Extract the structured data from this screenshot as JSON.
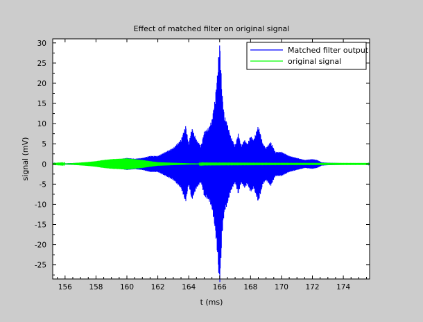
{
  "window": {
    "background": "#cccccc"
  },
  "chart_data": {
    "type": "line",
    "title": "Effect of matched filter on original signal",
    "xlabel": "t (ms)",
    "ylabel": "signal (mV)",
    "xlim": [
      155.2,
      175.7
    ],
    "ylim": [
      -28.5,
      31
    ],
    "xticks": [
      156,
      158,
      160,
      162,
      164,
      166,
      168,
      170,
      172,
      174
    ],
    "xtick_labels": [
      "156",
      "158",
      "160",
      "162",
      "164",
      "166",
      "168",
      "170",
      "172",
      "174"
    ],
    "yticks": [
      30,
      25,
      20,
      15,
      10,
      5,
      0,
      -5,
      -10,
      -15,
      -20,
      -25
    ],
    "ytick_labels": [
      "30",
      "25",
      "20",
      "15",
      "10",
      "5",
      "0",
      "-5",
      "-10",
      "-15",
      "-20",
      "-25"
    ],
    "grid": false,
    "legend_position": "top-right",
    "series": [
      {
        "name": "Matched filter output",
        "color": "#0000ff",
        "envelope": {
          "t": [
            155.2,
            156,
            157,
            158,
            159,
            159.5,
            160,
            160.5,
            161,
            161.5,
            162,
            162.5,
            163,
            163.5,
            163.8,
            164,
            164.2,
            164.5,
            164.8,
            165,
            165.3,
            165.5,
            165.7,
            165.85,
            165.95,
            166,
            166.05,
            166.15,
            166.3,
            166.5,
            166.7,
            167,
            167.2,
            167.4,
            167.6,
            167.8,
            168,
            168.2,
            168.5,
            168.8,
            169,
            169.3,
            169.6,
            170,
            170.5,
            171,
            171.5,
            172,
            172.3,
            172.6,
            173,
            174,
            175.7
          ],
          "amplitude": [
            0.1,
            0.15,
            0.3,
            0.6,
            0.8,
            1.2,
            1.5,
            1.3,
            1.5,
            2.0,
            2.0,
            3.0,
            4.0,
            6.0,
            9.5,
            5.0,
            9.0,
            6.0,
            4.5,
            8.0,
            9.0,
            11.0,
            16.0,
            22.0,
            28.0,
            30.0,
            27.0,
            18.0,
            12.0,
            10.0,
            7.0,
            4.5,
            7.5,
            4.5,
            6.0,
            5.0,
            7.0,
            6.0,
            9.5,
            5.0,
            4.0,
            5.5,
            3.0,
            3.0,
            2.0,
            1.5,
            1.0,
            1.2,
            1.0,
            0.4,
            0.3,
            0.2,
            0.1
          ]
        }
      },
      {
        "name": "original signal",
        "color": "#00ff00",
        "envelope": {
          "t": [
            155.2,
            156,
            156.5,
            157,
            157.5,
            158,
            158.5,
            159,
            159.5,
            160,
            160.5,
            161,
            161.5,
            162,
            163,
            164,
            165,
            170,
            175.7
          ],
          "amplitude": [
            0.05,
            0.1,
            0.2,
            0.35,
            0.5,
            0.7,
            1.0,
            1.2,
            1.3,
            1.4,
            1.2,
            1.0,
            0.7,
            0.45,
            0.3,
            0.15,
            0.08,
            0.06,
            0.05
          ]
        }
      }
    ]
  }
}
